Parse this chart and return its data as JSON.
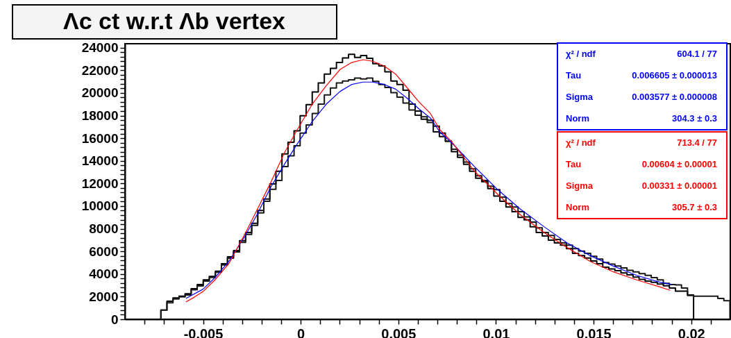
{
  "chart_data": {
    "type": "histogram",
    "title": "Λc ct w.r.t Λb vertex",
    "xlim": [
      -0.009,
      0.022
    ],
    "ylim": [
      0,
      24350
    ],
    "grid": false,
    "xticks": [
      {
        "value": -0.008,
        "label": null
      },
      {
        "value": -0.007,
        "label": null
      },
      {
        "value": -0.006,
        "label": null
      },
      -0.005,
      {
        "value": -0.004,
        "label": null
      },
      {
        "value": -0.003,
        "label": null
      },
      {
        "value": -0.002,
        "label": null
      },
      {
        "value": -0.001,
        "label": null
      },
      0,
      {
        "value": 0.001,
        "label": null
      },
      {
        "value": 0.002,
        "label": null
      },
      {
        "value": 0.003,
        "label": null
      },
      {
        "value": 0.004,
        "label": null
      },
      0.005,
      {
        "value": 0.006,
        "label": null
      },
      {
        "value": 0.007,
        "label": null
      },
      {
        "value": 0.008,
        "label": null
      },
      {
        "value": 0.009,
        "label": null
      },
      0.01,
      {
        "value": 0.011,
        "label": null
      },
      {
        "value": 0.012,
        "label": null
      },
      {
        "value": 0.013,
        "label": null
      },
      {
        "value": 0.014,
        "label": null
      },
      0.015,
      {
        "value": 0.016,
        "label": null
      },
      {
        "value": 0.017,
        "label": null
      },
      {
        "value": 0.018,
        "label": null
      },
      {
        "value": 0.019,
        "label": null
      },
      0.02,
      {
        "value": 0.021,
        "label": null
      }
    ],
    "yticks": [
      0,
      {
        "value": 400,
        "label": null
      },
      {
        "value": 800,
        "label": null
      },
      {
        "value": 1200,
        "label": null
      },
      {
        "value": 1600,
        "label": null
      },
      2000,
      {
        "value": 2400,
        "label": null
      },
      {
        "value": 2800,
        "label": null
      },
      {
        "value": 3200,
        "label": null
      },
      {
        "value": 3600,
        "label": null
      },
      4000,
      {
        "value": 4400,
        "label": null
      },
      {
        "value": 4800,
        "label": null
      },
      {
        "value": 5200,
        "label": null
      },
      {
        "value": 5600,
        "label": null
      },
      6000,
      {
        "value": 6400,
        "label": null
      },
      {
        "value": 6800,
        "label": null
      },
      {
        "value": 7200,
        "label": null
      },
      {
        "value": 7600,
        "label": null
      },
      8000,
      {
        "value": 8400,
        "label": null
      },
      {
        "value": 8800,
        "label": null
      },
      {
        "value": 9200,
        "label": null
      },
      {
        "value": 9600,
        "label": null
      },
      10000,
      {
        "value": 10400,
        "label": null
      },
      {
        "value": 10800,
        "label": null
      },
      {
        "value": 11200,
        "label": null
      },
      {
        "value": 11600,
        "label": null
      },
      12000,
      {
        "value": 12400,
        "label": null
      },
      {
        "value": 12800,
        "label": null
      },
      {
        "value": 13200,
        "label": null
      },
      {
        "value": 13600,
        "label": null
      },
      14000,
      {
        "value": 14400,
        "label": null
      },
      {
        "value": 14800,
        "label": null
      },
      {
        "value": 15200,
        "label": null
      },
      {
        "value": 15600,
        "label": null
      },
      16000,
      {
        "value": 16400,
        "label": null
      },
      {
        "value": 16800,
        "label": null
      },
      {
        "value": 17200,
        "label": null
      },
      {
        "value": 17600,
        "label": null
      },
      18000,
      {
        "value": 18400,
        "label": null
      },
      {
        "value": 18800,
        "label": null
      },
      {
        "value": 19200,
        "label": null
      },
      {
        "value": 19600,
        "label": null
      },
      20000,
      {
        "value": 20400,
        "label": null
      },
      {
        "value": 20800,
        "label": null
      },
      {
        "value": 21200,
        "label": null
      },
      {
        "value": 21600,
        "label": null
      },
      22000,
      {
        "value": 22400,
        "label": null
      },
      {
        "value": 22800,
        "label": null
      },
      {
        "value": 23200,
        "label": null
      },
      {
        "value": 23600,
        "label": null
      },
      24000
    ],
    "series": [
      {
        "color": "#000000",
        "bins": [
          -0.00716,
          -0.00685,
          -0.00654,
          -0.00623,
          -0.00592,
          -0.00561,
          -0.0053,
          -0.00499,
          -0.00468,
          -0.00437,
          -0.00406,
          -0.00375,
          -0.00344,
          -0.00313,
          -0.00282,
          -0.00251,
          -0.0022,
          -0.00189,
          -0.00158,
          -0.00127,
          -0.00096,
          -0.00065,
          -0.00034,
          -3e-05,
          0.00028,
          0.00059,
          0.0009,
          0.00121,
          0.00152,
          0.00183,
          0.00214,
          0.00245,
          0.00276,
          0.00307,
          0.00338,
          0.00369,
          0.004,
          0.00431,
          0.00462,
          0.00493,
          0.00524,
          0.00555,
          0.00586,
          0.00617,
          0.00648,
          0.00679,
          0.0071,
          0.00741,
          0.00772,
          0.00803,
          0.00834,
          0.00865,
          0.00896,
          0.00927,
          0.00958,
          0.00989,
          0.0102,
          0.01051,
          0.01082,
          0.01113,
          0.01144,
          0.01175,
          0.01206,
          0.01237,
          0.01268,
          0.01299,
          0.0133,
          0.01361,
          0.01392,
          0.01423,
          0.01454,
          0.01485,
          0.01516,
          0.01547,
          0.01578,
          0.01609,
          0.0164,
          0.01671,
          0.01702,
          0.01733,
          0.01764,
          0.01795,
          0.01826,
          0.01857,
          0.01888,
          0.01919,
          0.0195,
          0.01981,
          0.02012
        ],
        "values": [
          820,
          1600,
          1880,
          2040,
          2250,
          2700,
          3070,
          3480,
          3780,
          4250,
          4900,
          5520,
          6070,
          6950,
          7670,
          8480,
          9610,
          10630,
          11960,
          13080,
          14620,
          15640,
          16660,
          17990,
          18970,
          20080,
          20890,
          21670,
          22180,
          22690,
          23100,
          23410,
          23140,
          23310,
          23060,
          22590,
          22390,
          21870,
          21060,
          20750,
          20240,
          19010,
          18400,
          17680,
          17590,
          16560,
          16150,
          15740,
          14820,
          14310,
          13700,
          13080,
          12470,
          12160,
          11550,
          10880,
          10430,
          9920,
          9510,
          9000,
          8790,
          8180,
          7670,
          7360,
          6990,
          6750,
          6540,
          6240,
          5830,
          5620,
          5420,
          5150,
          4910,
          4600,
          4440,
          4290,
          4090,
          3930,
          3720,
          3520,
          3370,
          3270,
          3110,
          2960,
          2760,
          2490,
          2490,
          2150
        ]
      },
      {
        "color": "#181818",
        "bins": [
          -0.00716,
          -0.00685,
          -0.00654,
          -0.00623,
          -0.00592,
          -0.00561,
          -0.0053,
          -0.00499,
          -0.00468,
          -0.00437,
          -0.00406,
          -0.00375,
          -0.00344,
          -0.00313,
          -0.00282,
          -0.00251,
          -0.0022,
          -0.00189,
          -0.00158,
          -0.00127,
          -0.00096,
          -0.00065,
          -0.00034,
          -3e-05,
          0.00028,
          0.00059,
          0.0009,
          0.00121,
          0.00152,
          0.00183,
          0.00214,
          0.00245,
          0.00276,
          0.00307,
          0.00338,
          0.00369,
          0.004,
          0.00431,
          0.00462,
          0.00493,
          0.00524,
          0.00555,
          0.00586,
          0.00617,
          0.00648,
          0.00679,
          0.0071,
          0.00741,
          0.00772,
          0.00803,
          0.00834,
          0.00865,
          0.00896,
          0.00927,
          0.00958,
          0.00989,
          0.0102,
          0.01051,
          0.01082,
          0.01113,
          0.01144,
          0.01175,
          0.01206,
          0.01237,
          0.01268,
          0.01299,
          0.0133,
          0.01361,
          0.01392,
          0.01423,
          0.01454,
          0.01485,
          0.01516,
          0.01547,
          0.01578,
          0.01609,
          0.0164,
          0.01671,
          0.01702,
          0.01733,
          0.01764,
          0.01795,
          0.01826,
          0.01857,
          0.01888,
          0.01919,
          0.0195,
          0.01981,
          0.02012,
          0.02043,
          0.02074,
          0.02105,
          0.02136,
          0.02167,
          0.02198
        ],
        "values": [
          820,
          1450,
          1800,
          1980,
          2150,
          2600,
          2950,
          3380,
          3700,
          4150,
          4800,
          5400,
          5950,
          6800,
          7500,
          8300,
          9400,
          10430,
          11490,
          12270,
          13490,
          14450,
          15330,
          16460,
          17170,
          18190,
          19010,
          19830,
          20440,
          20890,
          21060,
          21160,
          21310,
          21230,
          21310,
          21020,
          20750,
          20480,
          20030,
          19630,
          19110,
          18500,
          18030,
          17890,
          17390,
          17070,
          16460,
          15740,
          15030,
          14510,
          13900,
          13290,
          12680,
          12270,
          11760,
          11450,
          10790,
          10220,
          9920,
          9510,
          9040,
          8590,
          8080,
          7670,
          7400,
          7050,
          6750,
          6540,
          6240,
          6030,
          5830,
          5560,
          5320,
          5010,
          4870,
          4700,
          4540,
          4330,
          4190,
          4030,
          3880,
          3680,
          3480,
          3170,
          3070,
          3030,
          2760,
          2100,
          2040,
          2040,
          2040,
          2040,
          1840,
          1640
        ]
      },
      {
        "type": "line",
        "color": "#0000ff",
        "x": [
          -0.00588,
          -0.005,
          -0.00439,
          -0.00368,
          -0.00285,
          -0.00225,
          -0.00154,
          -0.00083,
          -0.00024,
          0.00059,
          0.00131,
          0.00202,
          0.00261,
          0.0032,
          0.00368,
          0.00427,
          0.00486,
          0.00546,
          0.00605,
          0.00664,
          0.00712,
          0.00771,
          0.0089,
          0.01009,
          0.01127,
          0.01246,
          0.01364,
          0.01483,
          0.01601,
          0.0172,
          0.01839,
          0.01898
        ],
        "values": [
          1840,
          2660,
          3680,
          5110,
          7360,
          9200,
          11650,
          13700,
          15330,
          17480,
          19010,
          20140,
          20750,
          20960,
          20960,
          20750,
          20340,
          19520,
          18600,
          17790,
          16560,
          15640,
          13490,
          11450,
          9710,
          8180,
          6750,
          5620,
          4700,
          3880,
          3270,
          3070
        ]
      },
      {
        "type": "line",
        "color": "#ff0000",
        "x": [
          -0.00588,
          -0.00546,
          -0.005,
          -0.00439,
          -0.00368,
          -0.00285,
          -0.00225,
          -0.00154,
          -0.00083,
          -0.00024,
          0.00059,
          0.00131,
          0.00202,
          0.00261,
          0.0032,
          0.00368,
          0.00427,
          0.00486,
          0.00546,
          0.00605,
          0.00664,
          0.00712,
          0.00771,
          0.0089,
          0.01009,
          0.01127,
          0.01246,
          0.01364,
          0.01483,
          0.01601,
          0.0172,
          0.01839,
          0.01892
        ],
        "values": [
          1530,
          1940,
          2450,
          3480,
          4910,
          7560,
          9610,
          12060,
          14720,
          16560,
          19010,
          20650,
          22080,
          22690,
          22940,
          22800,
          22390,
          21670,
          20440,
          19220,
          18190,
          16760,
          15740,
          13080,
          11040,
          9200,
          7670,
          6340,
          5110,
          4190,
          3480,
          2860,
          2560
        ]
      }
    ],
    "annotations": [
      "χ² / ndf",
      "604.1 / 77",
      "Tau",
      "0.006605 ± 0.000013",
      "Sigma",
      "0.003577 ± 0.000008",
      "Norm",
      "304.3 ± 0.3",
      "χ² / ndf",
      "713.4 / 77",
      "Tau",
      "0.00604 ± 0.00001",
      "Sigma",
      "0.00331 ± 0.00001",
      "Norm",
      "305.7 ± 0.3"
    ]
  }
}
